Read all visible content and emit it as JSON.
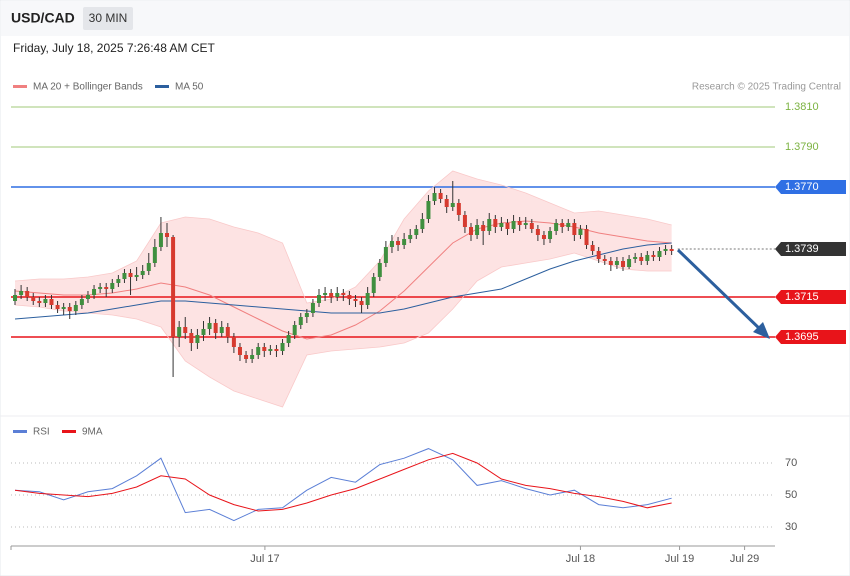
{
  "chart_data": [
    {
      "type": "candlestick",
      "title": "USD/CAD",
      "timeframe": "30 MIN",
      "subtitle": "Friday, July 18, 2025 7:26:48 AM CET",
      "credit": "Research © 2025 Trading Central",
      "up_color": "#3f8f3f",
      "down_color": "#d63a2f",
      "xlim": [
        -0.66,
        125
      ],
      "ylim": [
        1.3656,
        1.3831
      ],
      "xticks": [
        {
          "value": 41.1,
          "label": "Jul 17"
        },
        {
          "value": 93,
          "label": "Jul 18"
        },
        {
          "value": 109.3,
          "label": "Jul 19"
        },
        {
          "value": 120,
          "label": "Jul 29"
        }
      ],
      "levels": [
        {
          "value": 1.381,
          "label": "1.3810",
          "color": "#7cb342",
          "boxed": false
        },
        {
          "value": 1.379,
          "label": "1.3790",
          "color": "#7cb342",
          "boxed": false
        },
        {
          "value": 1.377,
          "label": "1.3770",
          "color": "#2f6fe4",
          "boxed": true
        },
        {
          "value": 1.3739,
          "label": "1.3739",
          "color": "#333333",
          "boxed": true,
          "dotted": true
        },
        {
          "value": 1.3715,
          "label": "1.3715",
          "color": "#e8141a",
          "boxed": true
        },
        {
          "value": 1.3695,
          "label": "1.3695",
          "color": "#e8141a",
          "boxed": true
        }
      ],
      "line_x": [
        0,
        4,
        8,
        12,
        16,
        20,
        24,
        28,
        32,
        36,
        40,
        44,
        48,
        52,
        56,
        60,
        64,
        68,
        72,
        76,
        80,
        84,
        88,
        92,
        96,
        100,
        104,
        108
      ],
      "series": [
        {
          "name": "MA 20 + Bollinger Bands",
          "color": "#f08080",
          "band_color": "#fde3e3",
          "values": [
            1.3718,
            1.3717,
            1.3716,
            1.3716,
            1.3717,
            1.3719,
            1.3722,
            1.372,
            1.3716,
            1.371,
            1.3704,
            1.3698,
            1.3694,
            1.3696,
            1.3701,
            1.3708,
            1.3718,
            1.373,
            1.3742,
            1.3749,
            1.3752,
            1.3753,
            1.3752,
            1.375,
            1.3747,
            1.3745,
            1.3743,
            1.3742
          ],
          "band_upper": [
            1.3723,
            1.3724,
            1.3724,
            1.3725,
            1.3727,
            1.3733,
            1.3752,
            1.3755,
            1.3754,
            1.375,
            1.3747,
            1.3742,
            1.3712,
            1.3714,
            1.372,
            1.3733,
            1.3754,
            1.3768,
            1.3778,
            1.3774,
            1.3771,
            1.3767,
            1.3762,
            1.3757,
            1.3758,
            1.3756,
            1.3754,
            1.3751
          ],
          "band_lower": [
            1.3711,
            1.371,
            1.3708,
            1.3707,
            1.3706,
            1.3704,
            1.37,
            1.3683,
            1.3675,
            1.3668,
            1.3664,
            1.366,
            1.3686,
            1.3688,
            1.3689,
            1.369,
            1.3692,
            1.3697,
            1.3709,
            1.3723,
            1.373,
            1.3732,
            1.3734,
            1.3737,
            1.3733,
            1.3729,
            1.3728,
            1.3728
          ]
        },
        {
          "name": "MA 50",
          "color": "#2c5f9e",
          "values": [
            1.3704,
            1.3705,
            1.3706,
            1.3707,
            1.3709,
            1.3711,
            1.3713,
            1.3713,
            1.3712,
            1.3711,
            1.371,
            1.3709,
            1.3708,
            1.3707,
            1.3707,
            1.3707,
            1.3709,
            1.3712,
            1.3715,
            1.3717,
            1.3719,
            1.3724,
            1.3729,
            1.3733,
            1.3736,
            1.3739,
            1.3741,
            1.3742
          ]
        }
      ],
      "ohlc": [
        [
          1.3713,
          1.3719,
          1.3711,
          1.3716
        ],
        [
          1.3716,
          1.3721,
          1.3714,
          1.3718
        ],
        [
          1.3718,
          1.372,
          1.3713,
          1.3715
        ],
        [
          1.3715,
          1.3717,
          1.3711,
          1.3713
        ],
        [
          1.3713,
          1.3715,
          1.371,
          1.3712
        ],
        [
          1.3712,
          1.3716,
          1.371,
          1.3714
        ],
        [
          1.3714,
          1.3716,
          1.3709,
          1.3711
        ],
        [
          1.3711,
          1.3713,
          1.3707,
          1.3709
        ],
        [
          1.3709,
          1.3712,
          1.3706,
          1.371
        ],
        [
          1.371,
          1.3712,
          1.3704,
          1.3708
        ],
        [
          1.3708,
          1.3713,
          1.3706,
          1.3711
        ],
        [
          1.3711,
          1.3716,
          1.3709,
          1.3714
        ],
        [
          1.3714,
          1.3718,
          1.3712,
          1.3716
        ],
        [
          1.3716,
          1.3721,
          1.3714,
          1.3719
        ],
        [
          1.3719,
          1.3722,
          1.3717,
          1.372
        ],
        [
          1.372,
          1.3722,
          1.3715,
          1.3719
        ],
        [
          1.3719,
          1.3724,
          1.3717,
          1.3722
        ],
        [
          1.3722,
          1.3726,
          1.372,
          1.3724
        ],
        [
          1.3724,
          1.3729,
          1.3722,
          1.3727
        ],
        [
          1.3727,
          1.3729,
          1.3716,
          1.3725
        ],
        [
          1.3725,
          1.373,
          1.3723,
          1.3726
        ],
        [
          1.3726,
          1.3731,
          1.3724,
          1.3728
        ],
        [
          1.3728,
          1.3737,
          1.3726,
          1.3732
        ],
        [
          1.3732,
          1.3744,
          1.373,
          1.374
        ],
        [
          1.374,
          1.3755,
          1.3738,
          1.3747
        ],
        [
          1.3747,
          1.3752,
          1.374,
          1.3745
        ],
        [
          1.3745,
          1.3746,
          1.3675,
          1.3695
        ],
        [
          1.3695,
          1.3703,
          1.369,
          1.37
        ],
        [
          1.37,
          1.3705,
          1.3694,
          1.3697
        ],
        [
          1.3697,
          1.3699,
          1.3688,
          1.3692
        ],
        [
          1.3692,
          1.3699,
          1.3689,
          1.3696
        ],
        [
          1.3696,
          1.3703,
          1.3693,
          1.3699
        ],
        [
          1.3699,
          1.3705,
          1.3696,
          1.3702
        ],
        [
          1.3702,
          1.3704,
          1.3694,
          1.3697
        ],
        [
          1.3697,
          1.3703,
          1.3695,
          1.37
        ],
        [
          1.37,
          1.3702,
          1.3692,
          1.3695
        ],
        [
          1.3695,
          1.3697,
          1.3687,
          1.369
        ],
        [
          1.369,
          1.3692,
          1.3683,
          1.3686
        ],
        [
          1.3686,
          1.3688,
          1.3682,
          1.3684
        ],
        [
          1.3684,
          1.3689,
          1.3682,
          1.3686
        ],
        [
          1.3686,
          1.3692,
          1.3684,
          1.369
        ],
        [
          1.369,
          1.3692,
          1.3685,
          1.3688
        ],
        [
          1.3688,
          1.3691,
          1.3686,
          1.3689
        ],
        [
          1.3689,
          1.3691,
          1.3685,
          1.3688
        ],
        [
          1.3688,
          1.3694,
          1.3686,
          1.3692
        ],
        [
          1.3692,
          1.3698,
          1.369,
          1.3696
        ],
        [
          1.3696,
          1.3703,
          1.3694,
          1.3701
        ],
        [
          1.3701,
          1.3707,
          1.3699,
          1.3705
        ],
        [
          1.3705,
          1.3709,
          1.3702,
          1.3707
        ],
        [
          1.3707,
          1.3714,
          1.3705,
          1.3712
        ],
        [
          1.3712,
          1.3719,
          1.371,
          1.3716
        ],
        [
          1.3716,
          1.372,
          1.3713,
          1.3717
        ],
        [
          1.3717,
          1.3719,
          1.3712,
          1.3715
        ],
        [
          1.3715,
          1.372,
          1.3713,
          1.3717
        ],
        [
          1.3717,
          1.3719,
          1.3713,
          1.3716
        ],
        [
          1.3716,
          1.3718,
          1.3711,
          1.3714
        ],
        [
          1.3714,
          1.3716,
          1.371,
          1.3713
        ],
        [
          1.3713,
          1.3715,
          1.3707,
          1.3711
        ],
        [
          1.3711,
          1.372,
          1.3709,
          1.3717
        ],
        [
          1.3717,
          1.3727,
          1.3715,
          1.3725
        ],
        [
          1.3725,
          1.3734,
          1.3723,
          1.3732
        ],
        [
          1.3732,
          1.3743,
          1.373,
          1.374
        ],
        [
          1.374,
          1.3746,
          1.3737,
          1.3743
        ],
        [
          1.3743,
          1.3745,
          1.3738,
          1.3741
        ],
        [
          1.3741,
          1.3747,
          1.3739,
          1.3744
        ],
        [
          1.3744,
          1.3749,
          1.3742,
          1.3746
        ],
        [
          1.3746,
          1.3751,
          1.3744,
          1.3749
        ],
        [
          1.3749,
          1.3757,
          1.3747,
          1.3754
        ],
        [
          1.3754,
          1.3766,
          1.3752,
          1.3763
        ],
        [
          1.3763,
          1.377,
          1.3761,
          1.3767
        ],
        [
          1.3767,
          1.3769,
          1.3762,
          1.3764
        ],
        [
          1.3764,
          1.3766,
          1.3757,
          1.376
        ],
        [
          1.376,
          1.3773,
          1.3758,
          1.3762
        ],
        [
          1.3762,
          1.3764,
          1.3753,
          1.3756
        ],
        [
          1.3756,
          1.3758,
          1.3747,
          1.375
        ],
        [
          1.375,
          1.3752,
          1.3743,
          1.3746
        ],
        [
          1.3746,
          1.3754,
          1.3744,
          1.3751
        ],
        [
          1.3751,
          1.3753,
          1.3741,
          1.3748
        ],
        [
          1.3748,
          1.3757,
          1.3746,
          1.3754
        ],
        [
          1.3754,
          1.3756,
          1.3747,
          1.375
        ],
        [
          1.375,
          1.3755,
          1.3748,
          1.3752
        ],
        [
          1.3752,
          1.3754,
          1.3746,
          1.3749
        ],
        [
          1.3749,
          1.3756,
          1.3747,
          1.3753
        ],
        [
          1.3753,
          1.3755,
          1.3748,
          1.3751
        ],
        [
          1.3751,
          1.3755,
          1.3749,
          1.3752
        ],
        [
          1.3752,
          1.3754,
          1.3747,
          1.3749
        ],
        [
          1.3749,
          1.3751,
          1.3743,
          1.3746
        ],
        [
          1.3746,
          1.3748,
          1.3741,
          1.3744
        ],
        [
          1.3744,
          1.375,
          1.3742,
          1.3748
        ],
        [
          1.3748,
          1.3754,
          1.3746,
          1.3752
        ],
        [
          1.3752,
          1.3754,
          1.3747,
          1.375
        ],
        [
          1.375,
          1.3754,
          1.3748,
          1.3752
        ],
        [
          1.3752,
          1.3754,
          1.3743,
          1.3746
        ],
        [
          1.3746,
          1.3751,
          1.3744,
          1.3749
        ],
        [
          1.3749,
          1.3751,
          1.3739,
          1.3741
        ],
        [
          1.3741,
          1.3743,
          1.3736,
          1.3738
        ],
        [
          1.3738,
          1.374,
          1.3732,
          1.3734
        ],
        [
          1.3734,
          1.3736,
          1.3731,
          1.3733
        ],
        [
          1.3733,
          1.3735,
          1.3728,
          1.3731
        ],
        [
          1.3731,
          1.3735,
          1.3729,
          1.3733
        ],
        [
          1.3733,
          1.3735,
          1.3728,
          1.373
        ],
        [
          1.373,
          1.3736,
          1.3729,
          1.3734
        ],
        [
          1.3734,
          1.3737,
          1.3732,
          1.3735
        ],
        [
          1.3735,
          1.3737,
          1.3731,
          1.3733
        ],
        [
          1.3733,
          1.3738,
          1.3731,
          1.3736
        ],
        [
          1.3736,
          1.3738,
          1.3733,
          1.3735
        ],
        [
          1.3735,
          1.374,
          1.3733,
          1.3738
        ],
        [
          1.3738,
          1.3741,
          1.3736,
          1.3739
        ],
        [
          1.3739,
          1.3741,
          1.3736,
          1.3738
        ]
      ]
    },
    {
      "type": "line",
      "ylim": [
        18.75,
        93.75
      ],
      "yticks": [
        30,
        50,
        70
      ],
      "grid": true,
      "x": [
        0,
        4,
        8,
        12,
        16,
        20,
        24,
        28,
        32,
        36,
        40,
        44,
        48,
        52,
        56,
        60,
        64,
        68,
        72,
        76,
        80,
        84,
        88,
        92,
        96,
        100,
        104,
        108
      ],
      "series": [
        {
          "name": "RSI",
          "color": "#5b7fd6",
          "values": [
            53,
            52,
            47,
            52,
            54,
            62,
            73,
            39,
            41,
            34,
            41,
            42,
            53,
            61,
            58,
            69,
            73,
            79,
            72,
            56,
            59,
            54,
            50,
            53,
            44,
            42,
            44,
            48
          ]
        },
        {
          "name": "9MA",
          "color": "#e8141a",
          "values": [
            53,
            51,
            50,
            49,
            51,
            55,
            62,
            60,
            50,
            44,
            40,
            41,
            45,
            50,
            54,
            60,
            66,
            72,
            76,
            70,
            60,
            56,
            54,
            51,
            49,
            46,
            42,
            45
          ]
        }
      ]
    }
  ]
}
